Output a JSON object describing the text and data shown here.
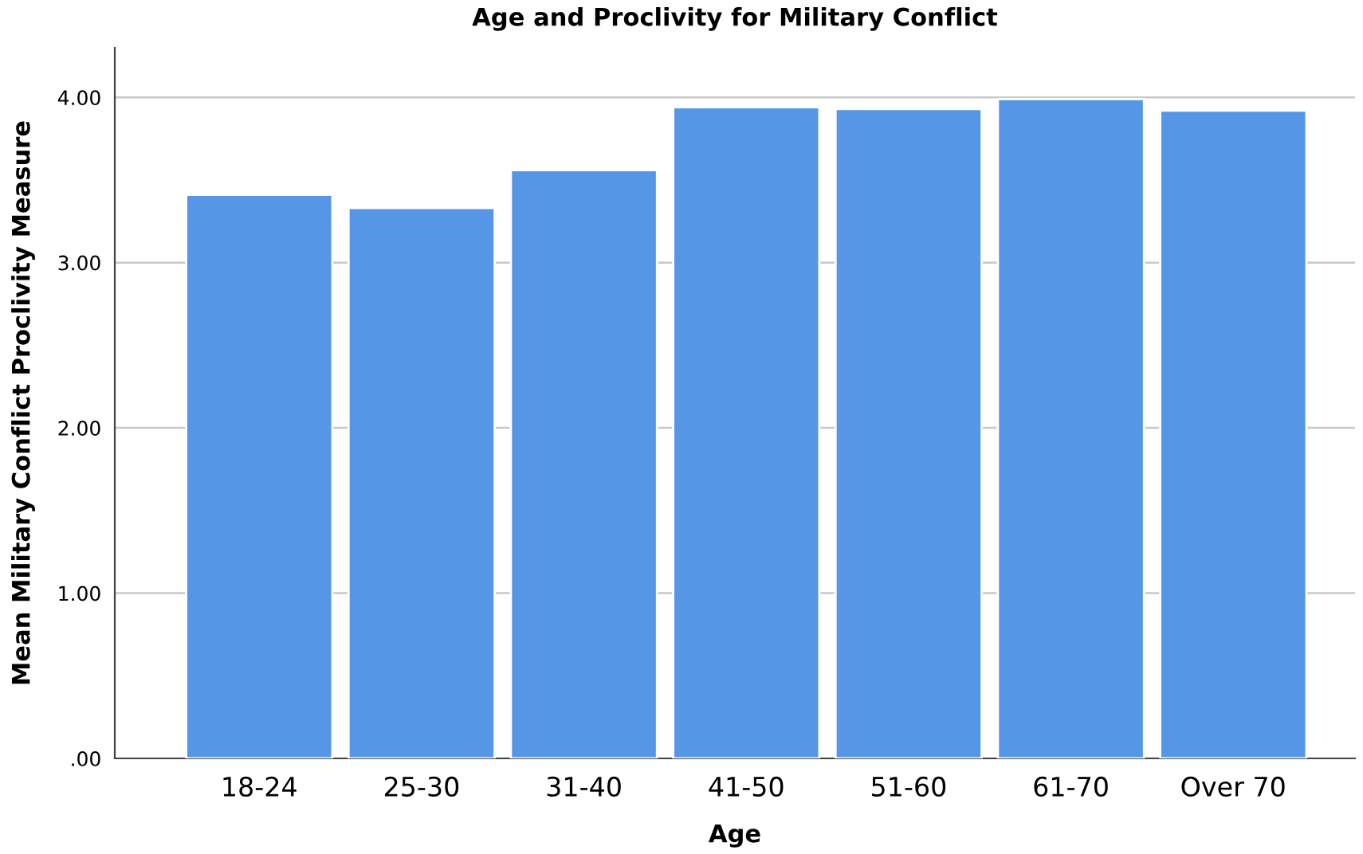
{
  "chart_data": {
    "type": "bar",
    "title": "Age and Proclivity for Military Conflict",
    "xlabel": "Age",
    "ylabel": "Mean Military Conflict Proclivity Measure",
    "categories": [
      "18-24",
      "25-30",
      "31-40",
      "41-50",
      "51-60",
      "61-70",
      "Over 70"
    ],
    "values": [
      3.41,
      3.33,
      3.56,
      3.94,
      3.93,
      3.99,
      3.92
    ],
    "color": "#5596e6",
    "ylim": [
      0,
      4.3
    ],
    "yticks": [
      {
        "value": 0,
        "label": ".00"
      },
      {
        "value": 1,
        "label": "1.00"
      },
      {
        "value": 2,
        "label": "2.00"
      },
      {
        "value": 3,
        "label": "3.00"
      },
      {
        "value": 4,
        "label": "4.00"
      }
    ],
    "grid": "y"
  }
}
